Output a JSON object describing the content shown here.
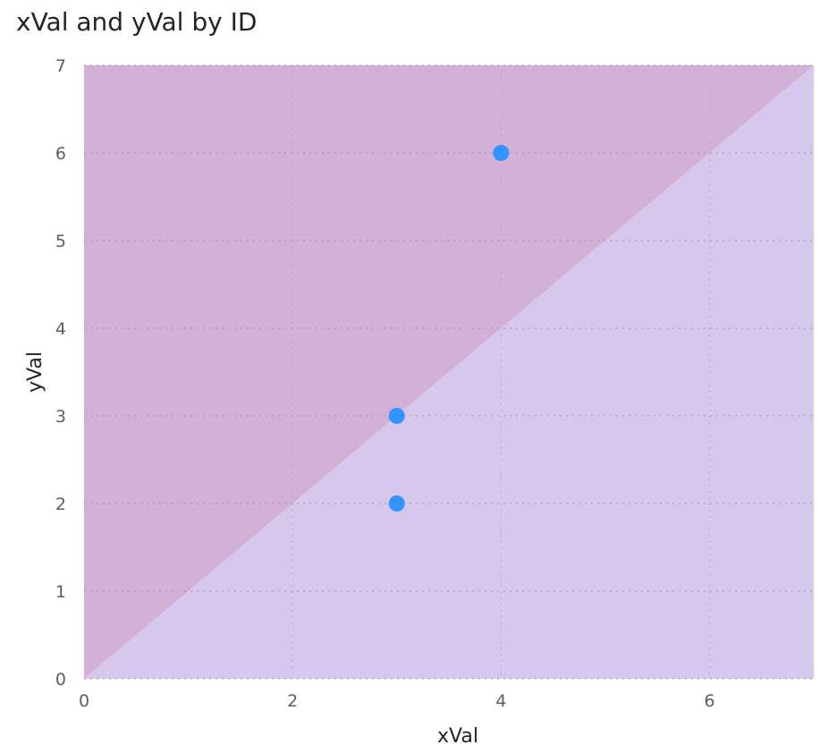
{
  "chart_data": {
    "type": "scatter",
    "title": "xVal and yVal by ID",
    "xlabel": "xVal",
    "ylabel": "yVal",
    "xlim": [
      0,
      7
    ],
    "ylim": [
      0,
      7
    ],
    "x_ticks": [
      0,
      2,
      4,
      6
    ],
    "y_ticks": [
      0,
      1,
      2,
      3,
      4,
      5,
      6,
      7
    ],
    "grid": true,
    "points": [
      {
        "x": 4,
        "y": 6
      },
      {
        "x": 3,
        "y": 3
      },
      {
        "x": 3,
        "y": 2
      }
    ],
    "regions": [
      {
        "name": "above-diagonal",
        "color": "#d3b0d6"
      },
      {
        "name": "below-diagonal",
        "color": "#d6c8ec"
      }
    ],
    "point_color": "#3393ff"
  }
}
